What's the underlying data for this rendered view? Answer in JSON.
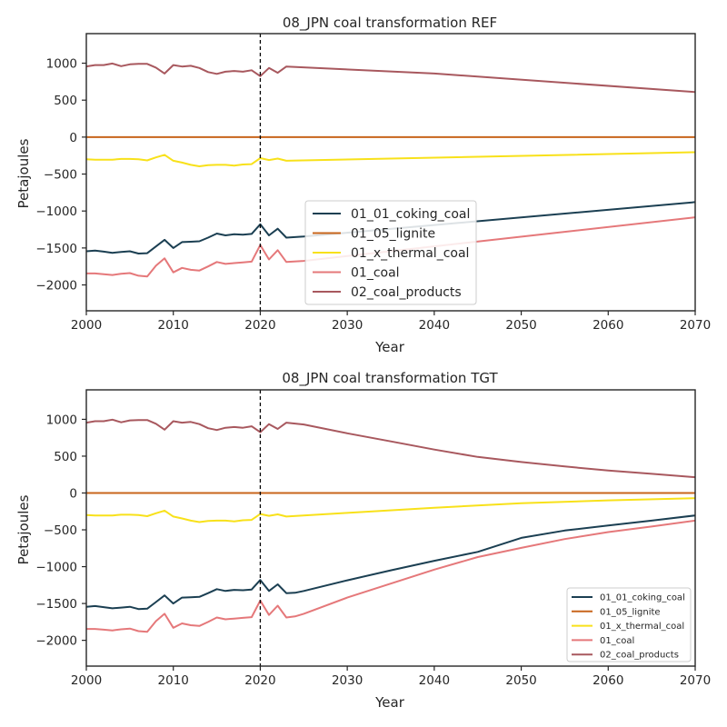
{
  "colors": {
    "01_01_coking_coal": "#1b3f52",
    "01_05_lignite": "#c8651b",
    "01_x_thermal_coal": "#f8e11a",
    "01_coal": "#e5787a",
    "02_coal_products": "#a8585e"
  },
  "chart_data": [
    {
      "type": "line",
      "title": "08_JPN coal transformation REF",
      "xlabel": "Year",
      "ylabel": "Petajoules",
      "xlim": [
        2000,
        2070
      ],
      "ylim": [
        -2350,
        1400
      ],
      "xticks": [
        "2000",
        "2010",
        "2020",
        "2030",
        "2040",
        "2050",
        "2060",
        "2070"
      ],
      "yticks": [
        "1000",
        "500",
        "0",
        "−500",
        "−1000",
        "−1500",
        "−2000"
      ],
      "vline": 2020,
      "legend_position": "lower center",
      "series": [
        {
          "name": "01_01_coking_coal",
          "x": [
            2000,
            2001,
            2002,
            2003,
            2004,
            2005,
            2006,
            2007,
            2008,
            2009,
            2010,
            2011,
            2012,
            2013,
            2014,
            2015,
            2016,
            2017,
            2018,
            2019,
            2020,
            2021,
            2022,
            2023,
            2025,
            2070
          ],
          "y": [
            -1545,
            -1535,
            -1550,
            -1565,
            -1555,
            -1545,
            -1575,
            -1570,
            -1480,
            -1390,
            -1500,
            -1420,
            -1415,
            -1410,
            -1360,
            -1305,
            -1330,
            -1315,
            -1320,
            -1310,
            -1180,
            -1330,
            -1240,
            -1360,
            -1345,
            -880
          ]
        },
        {
          "name": "01_05_lignite",
          "x": [
            2000,
            2070
          ],
          "y": [
            0,
            0
          ]
        },
        {
          "name": "01_x_thermal_coal",
          "x": [
            2000,
            2001,
            2002,
            2003,
            2004,
            2005,
            2006,
            2007,
            2008,
            2009,
            2010,
            2011,
            2012,
            2013,
            2014,
            2015,
            2016,
            2017,
            2018,
            2019,
            2020,
            2021,
            2022,
            2023,
            2070
          ],
          "y": [
            -300,
            -305,
            -305,
            -305,
            -295,
            -295,
            -300,
            -315,
            -275,
            -240,
            -320,
            -345,
            -375,
            -395,
            -380,
            -375,
            -375,
            -385,
            -370,
            -365,
            -285,
            -310,
            -290,
            -320,
            -205
          ]
        },
        {
          "name": "01_coal",
          "x": [
            2000,
            2001,
            2002,
            2003,
            2004,
            2005,
            2006,
            2007,
            2008,
            2009,
            2010,
            2011,
            2012,
            2013,
            2014,
            2015,
            2016,
            2017,
            2018,
            2019,
            2020,
            2021,
            2022,
            2023,
            2025,
            2070
          ],
          "y": [
            -1845,
            -1845,
            -1855,
            -1865,
            -1850,
            -1840,
            -1875,
            -1885,
            -1740,
            -1640,
            -1830,
            -1770,
            -1795,
            -1805,
            -1750,
            -1690,
            -1715,
            -1705,
            -1695,
            -1685,
            -1460,
            -1655,
            -1530,
            -1690,
            -1675,
            -1085
          ]
        },
        {
          "name": "02_coal_products",
          "x": [
            2000,
            2001,
            2002,
            2003,
            2004,
            2005,
            2006,
            2007,
            2008,
            2009,
            2010,
            2011,
            2012,
            2013,
            2014,
            2015,
            2016,
            2017,
            2018,
            2019,
            2020,
            2021,
            2022,
            2023,
            2040,
            2070
          ],
          "y": [
            955,
            975,
            975,
            995,
            960,
            985,
            990,
            990,
            940,
            860,
            975,
            955,
            965,
            935,
            880,
            855,
            885,
            895,
            885,
            905,
            825,
            935,
            870,
            955,
            860,
            610
          ]
        }
      ]
    },
    {
      "type": "line",
      "title": "08_JPN coal transformation TGT",
      "xlabel": "Year",
      "ylabel": "Petajoules",
      "xlim": [
        2000,
        2070
      ],
      "ylim": [
        -2350,
        1400
      ],
      "xticks": [
        "2000",
        "2010",
        "2020",
        "2030",
        "2040",
        "2050",
        "2060",
        "2070"
      ],
      "yticks": [
        "1000",
        "500",
        "0",
        "−500",
        "−1000",
        "−1500",
        "−2000"
      ],
      "vline": 2020,
      "legend_position": "lower right",
      "series": [
        {
          "name": "01_01_coking_coal",
          "x": [
            2000,
            2001,
            2002,
            2003,
            2004,
            2005,
            2006,
            2007,
            2008,
            2009,
            2010,
            2011,
            2012,
            2013,
            2014,
            2015,
            2016,
            2017,
            2018,
            2019,
            2020,
            2021,
            2022,
            2023,
            2024,
            2025,
            2030,
            2035,
            2040,
            2045,
            2050,
            2055,
            2060,
            2065,
            2070
          ],
          "y": [
            -1545,
            -1535,
            -1550,
            -1565,
            -1555,
            -1545,
            -1575,
            -1570,
            -1480,
            -1390,
            -1500,
            -1420,
            -1415,
            -1410,
            -1360,
            -1305,
            -1330,
            -1315,
            -1320,
            -1310,
            -1180,
            -1330,
            -1240,
            -1360,
            -1355,
            -1330,
            -1185,
            -1050,
            -920,
            -800,
            -610,
            -510,
            -440,
            -375,
            -305
          ]
        },
        {
          "name": "01_05_lignite",
          "x": [
            2000,
            2070
          ],
          "y": [
            0,
            0
          ]
        },
        {
          "name": "01_x_thermal_coal",
          "x": [
            2000,
            2001,
            2002,
            2003,
            2004,
            2005,
            2006,
            2007,
            2008,
            2009,
            2010,
            2011,
            2012,
            2013,
            2014,
            2015,
            2016,
            2017,
            2018,
            2019,
            2020,
            2021,
            2022,
            2023,
            2030,
            2040,
            2050,
            2060,
            2070
          ],
          "y": [
            -300,
            -305,
            -305,
            -305,
            -295,
            -295,
            -300,
            -315,
            -275,
            -240,
            -320,
            -345,
            -375,
            -395,
            -380,
            -375,
            -375,
            -385,
            -370,
            -365,
            -285,
            -310,
            -290,
            -320,
            -270,
            -200,
            -140,
            -100,
            -70
          ]
        },
        {
          "name": "01_coal",
          "x": [
            2000,
            2001,
            2002,
            2003,
            2004,
            2005,
            2006,
            2007,
            2008,
            2009,
            2010,
            2011,
            2012,
            2013,
            2014,
            2015,
            2016,
            2017,
            2018,
            2019,
            2020,
            2021,
            2022,
            2023,
            2024,
            2025,
            2030,
            2035,
            2040,
            2045,
            2050,
            2055,
            2060,
            2065,
            2070
          ],
          "y": [
            -1845,
            -1845,
            -1855,
            -1865,
            -1850,
            -1840,
            -1875,
            -1885,
            -1740,
            -1640,
            -1830,
            -1770,
            -1795,
            -1805,
            -1750,
            -1690,
            -1715,
            -1705,
            -1695,
            -1685,
            -1460,
            -1655,
            -1530,
            -1690,
            -1675,
            -1640,
            -1420,
            -1230,
            -1040,
            -870,
            -745,
            -625,
            -530,
            -455,
            -375
          ]
        },
        {
          "name": "02_coal_products",
          "x": [
            2000,
            2001,
            2002,
            2003,
            2004,
            2005,
            2006,
            2007,
            2008,
            2009,
            2010,
            2011,
            2012,
            2013,
            2014,
            2015,
            2016,
            2017,
            2018,
            2019,
            2020,
            2021,
            2022,
            2023,
            2025,
            2030,
            2035,
            2040,
            2045,
            2050,
            2055,
            2060,
            2065,
            2070
          ],
          "y": [
            955,
            975,
            975,
            995,
            960,
            985,
            990,
            990,
            940,
            860,
            975,
            955,
            965,
            935,
            880,
            855,
            885,
            895,
            885,
            905,
            825,
            935,
            870,
            955,
            930,
            810,
            700,
            590,
            490,
            420,
            360,
            305,
            260,
            215
          ]
        }
      ]
    }
  ]
}
